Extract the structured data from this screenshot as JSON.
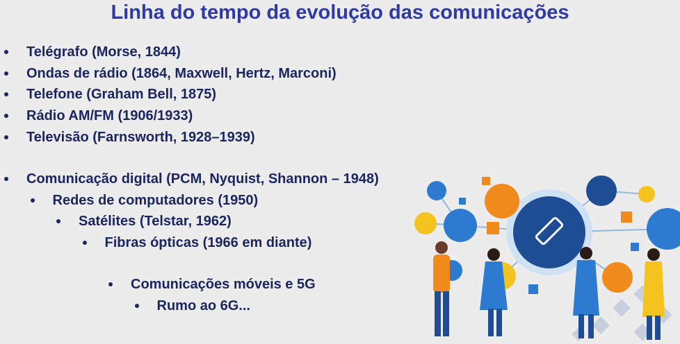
{
  "title": "Linha do tempo da evolução das comunicações",
  "groups": [
    [
      "Telégrafo (Morse, 1844)",
      "Ondas de rádio (1864, Maxwell, Hertz, Marconi)",
      "Telefone (Graham Bell, 1875)",
      "Rádio AM/FM (1906/1933)",
      "Televisão (Farnsworth, 1928–1939)"
    ],
    [
      "Comunicação digital (PCM, Nyquist, Shannon – 1948)",
      "Redes de computadores (1950)",
      "Satélites (Telstar, 1962)",
      "Fibras ópticas (1966 em diante)"
    ],
    [
      "Comunicações móveis e 5G",
      "Rumo ao 6G..."
    ]
  ]
}
